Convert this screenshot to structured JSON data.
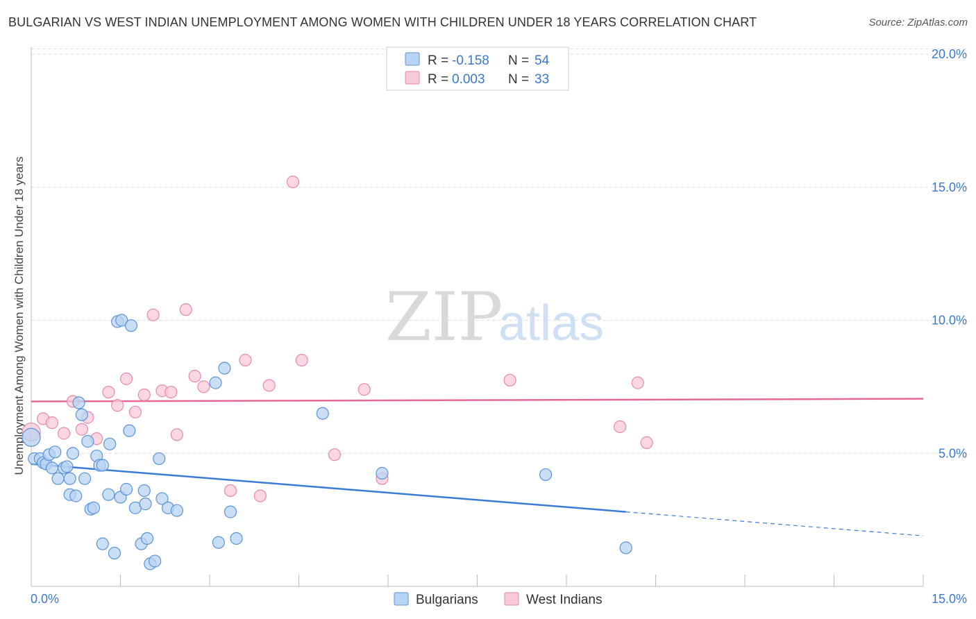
{
  "title": "BULGARIAN VS WEST INDIAN UNEMPLOYMENT AMONG WOMEN WITH CHILDREN UNDER 18 YEARS CORRELATION CHART",
  "source": "Source: ZipAtlas.com",
  "watermark": {
    "zip": "ZIP",
    "atlas": "atlas"
  },
  "colors": {
    "blue_fill": "#b8d3f3",
    "blue_stroke": "#5b93d8",
    "blue_line": "#3a7bd5",
    "pink_fill": "#f8c9d8",
    "pink_stroke": "#e88aa8",
    "pink_line": "#e4679a",
    "grid": "#dddddd",
    "accent_text": "#3b78c8"
  },
  "legend": {
    "rows": [
      {
        "r_label": "R =",
        "r_value": "-0.158",
        "n_label": "N =",
        "n_value": "54"
      },
      {
        "r_label": "R =",
        "r_value": "0.003",
        "n_label": "N =",
        "n_value": "33"
      }
    ]
  },
  "chart_data": {
    "type": "scatter",
    "title": "BULGARIAN VS WEST INDIAN UNEMPLOYMENT AMONG WOMEN WITH CHILDREN UNDER 18 YEARS CORRELATION CHART",
    "xlabel": "",
    "ylabel": "Unemployment Among Women with Children Under 18 years",
    "xlim": [
      0,
      15
    ],
    "ylim": [
      0,
      20
    ],
    "x_tick_labels": [
      "0.0%",
      "15.0%"
    ],
    "y_ticks": [
      5,
      10,
      15,
      20
    ],
    "y_tick_labels": [
      "5.0%",
      "10.0%",
      "15.0%",
      "20.0%"
    ],
    "legend_position": "bottom-center",
    "series": [
      {
        "name": "Bulgarians",
        "color": "blue",
        "r": -0.158,
        "n": 54,
        "trend": {
          "x0": 0.0,
          "y0": 4.6,
          "x1": 10.0,
          "y1": 2.8,
          "dash_to_x": 15.0,
          "dash_to_y": 1.9
        },
        "points": [
          [
            0.0,
            5.6
          ],
          [
            0.05,
            4.8
          ],
          [
            0.15,
            4.8
          ],
          [
            0.2,
            4.65
          ],
          [
            0.25,
            4.6
          ],
          [
            0.3,
            4.95
          ],
          [
            0.35,
            4.45
          ],
          [
            0.4,
            5.05
          ],
          [
            0.45,
            4.05
          ],
          [
            0.55,
            4.45
          ],
          [
            0.6,
            4.5
          ],
          [
            0.65,
            3.45
          ],
          [
            0.65,
            4.05
          ],
          [
            0.7,
            5.0
          ],
          [
            0.75,
            3.4
          ],
          [
            0.8,
            6.9
          ],
          [
            0.85,
            6.45
          ],
          [
            0.9,
            4.05
          ],
          [
            0.95,
            5.45
          ],
          [
            1.0,
            2.9
          ],
          [
            1.05,
            2.95
          ],
          [
            1.1,
            4.9
          ],
          [
            1.15,
            4.55
          ],
          [
            1.2,
            1.6
          ],
          [
            1.2,
            4.55
          ],
          [
            1.3,
            3.45
          ],
          [
            1.32,
            5.35
          ],
          [
            1.4,
            1.25
          ],
          [
            1.45,
            9.95
          ],
          [
            1.5,
            3.35
          ],
          [
            1.52,
            10.0
          ],
          [
            1.6,
            3.65
          ],
          [
            1.65,
            5.85
          ],
          [
            1.68,
            9.8
          ],
          [
            1.75,
            2.95
          ],
          [
            1.85,
            1.6
          ],
          [
            1.9,
            3.6
          ],
          [
            1.92,
            3.1
          ],
          [
            1.95,
            1.8
          ],
          [
            2.0,
            0.85
          ],
          [
            2.08,
            0.95
          ],
          [
            2.15,
            4.8
          ],
          [
            2.2,
            3.3
          ],
          [
            2.3,
            2.95
          ],
          [
            2.45,
            2.85
          ],
          [
            3.15,
            1.65
          ],
          [
            3.1,
            7.65
          ],
          [
            3.25,
            8.2
          ],
          [
            3.35,
            2.8
          ],
          [
            3.45,
            1.8
          ],
          [
            4.9,
            6.5
          ],
          [
            5.9,
            4.25
          ],
          [
            8.65,
            4.2
          ],
          [
            10.0,
            1.45
          ]
        ]
      },
      {
        "name": "West Indians",
        "color": "pink",
        "r": 0.003,
        "n": 33,
        "trend": {
          "x0": 0.0,
          "y0": 6.95,
          "x1": 15.0,
          "y1": 7.05
        },
        "points": [
          [
            0.0,
            5.8
          ],
          [
            0.2,
            6.3
          ],
          [
            0.35,
            6.15
          ],
          [
            0.55,
            5.75
          ],
          [
            0.7,
            6.95
          ],
          [
            0.85,
            5.9
          ],
          [
            0.95,
            6.35
          ],
          [
            1.1,
            5.55
          ],
          [
            1.3,
            7.3
          ],
          [
            1.45,
            6.8
          ],
          [
            1.6,
            7.8
          ],
          [
            1.75,
            6.55
          ],
          [
            1.9,
            7.2
          ],
          [
            2.05,
            10.2
          ],
          [
            2.2,
            7.35
          ],
          [
            2.35,
            7.3
          ],
          [
            2.45,
            5.7
          ],
          [
            2.6,
            10.4
          ],
          [
            2.75,
            7.9
          ],
          [
            2.9,
            7.5
          ],
          [
            3.35,
            3.6
          ],
          [
            3.6,
            8.5
          ],
          [
            3.85,
            3.4
          ],
          [
            4.0,
            7.55
          ],
          [
            4.4,
            15.2
          ],
          [
            4.55,
            8.5
          ],
          [
            5.1,
            4.95
          ],
          [
            5.6,
            7.4
          ],
          [
            5.9,
            4.05
          ],
          [
            8.05,
            7.75
          ],
          [
            9.9,
            6.0
          ],
          [
            10.2,
            7.65
          ],
          [
            10.35,
            5.4
          ]
        ]
      }
    ]
  }
}
